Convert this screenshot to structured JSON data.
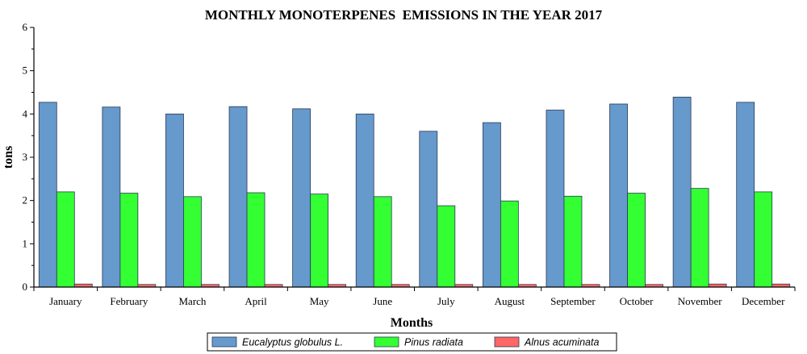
{
  "chart_data": {
    "type": "bar",
    "title": "MONTHLY MONOTERPENES  EMISSIONS IN THE YEAR 2017",
    "xlabel": "Months",
    "ylabel": "tons",
    "ylim": [
      0,
      6
    ],
    "yticks": [
      "0",
      "1",
      "2",
      "3",
      "4",
      "5",
      "6"
    ],
    "categories": [
      "January",
      "February",
      "March",
      "April",
      "May",
      "June",
      "July",
      "August",
      "September",
      "October",
      "November",
      "December"
    ],
    "series": [
      {
        "name": "Eucalyptus globulus L.",
        "color": "#6699cc",
        "values": [
          4.27,
          4.16,
          4.0,
          4.17,
          4.12,
          4.0,
          3.6,
          3.8,
          4.09,
          4.23,
          4.39,
          4.27
        ]
      },
      {
        "name": "Pinus radiata",
        "color": "#33ff33",
        "values": [
          2.2,
          2.17,
          2.09,
          2.18,
          2.15,
          2.09,
          1.88,
          1.99,
          2.1,
          2.17,
          2.28,
          2.2
        ]
      },
      {
        "name": "Alnus acuminata",
        "color": "#ff6666",
        "values": [
          0.07,
          0.06,
          0.06,
          0.06,
          0.06,
          0.06,
          0.06,
          0.06,
          0.06,
          0.06,
          0.07,
          0.07
        ]
      }
    ],
    "grid": false,
    "legend_position": "bottom-center"
  }
}
